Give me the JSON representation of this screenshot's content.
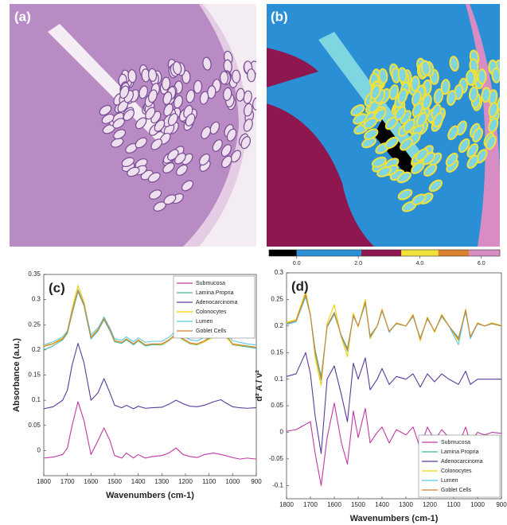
{
  "images": [
    {
      "label": "(a)"
    },
    {
      "label": "(b)"
    }
  ],
  "colorbar": {
    "lim": [
      -0.9,
      6.6
    ],
    "bounds": [
      -0.9,
      0,
      2.1,
      3.4,
      4.6,
      5.6,
      6.6
    ],
    "colors": [
      "#000000",
      "#2b8fd6",
      "#8e1750",
      "#f2e03a",
      "#d9812f",
      "#d88cc4"
    ],
    "ticks": [
      {
        "value": 0,
        "label": "0.0"
      },
      {
        "value": 2,
        "label": "2.0"
      },
      {
        "value": 4,
        "label": "4.0"
      },
      {
        "value": 6,
        "label": "6.0"
      }
    ]
  },
  "chart_data": [
    {
      "type": "line",
      "panel_label": "(c)",
      "x_label": "Wavenumbers (cm-1)",
      "y_label": "Absorbance (a.u.)",
      "legend": "upper right",
      "x": [
        1800,
        1760,
        1720,
        1700,
        1680,
        1655,
        1630,
        1600,
        1570,
        1545,
        1520,
        1500,
        1470,
        1450,
        1420,
        1400,
        1370,
        1340,
        1300,
        1270,
        1240,
        1210,
        1180,
        1150,
        1120,
        1080,
        1050,
        1030,
        1000,
        970,
        940,
        900
      ],
      "xlim": [
        1800,
        900
      ],
      "xticks": [
        1800,
        1700,
        1600,
        1500,
        1400,
        1300,
        1200,
        1100,
        1000,
        900
      ],
      "ylim": [
        -0.05,
        0.35
      ],
      "yticks": [
        0,
        0.05,
        0.1,
        0.15,
        0.2,
        0.25,
        0.3,
        0.35
      ],
      "series": [
        {
          "name": "Submucosa",
          "color": "#c0399f",
          "values": [
            -0.015,
            -0.013,
            -0.008,
            0.005,
            0.05,
            0.097,
            0.06,
            -0.008,
            0.02,
            0.045,
            0.02,
            -0.01,
            -0.015,
            -0.005,
            -0.015,
            -0.008,
            -0.015,
            -0.012,
            -0.01,
            -0.005,
            0.005,
            -0.008,
            -0.012,
            -0.014,
            -0.008,
            -0.005,
            -0.008,
            -0.01,
            -0.014,
            -0.017,
            -0.015,
            -0.017
          ]
        },
        {
          "name": "Lamina Propria",
          "color": "#3fb8a8",
          "values": [
            0.2,
            0.208,
            0.22,
            0.233,
            0.272,
            0.316,
            0.288,
            0.222,
            0.238,
            0.26,
            0.238,
            0.216,
            0.213,
            0.22,
            0.21,
            0.218,
            0.208,
            0.21,
            0.21,
            0.218,
            0.23,
            0.22,
            0.212,
            0.21,
            0.216,
            0.23,
            0.235,
            0.23,
            0.21,
            0.208,
            0.206,
            0.203
          ]
        },
        {
          "name": "Adenocarcinoma",
          "color": "#5a3a9a",
          "values": [
            0.083,
            0.087,
            0.1,
            0.12,
            0.17,
            0.213,
            0.175,
            0.1,
            0.115,
            0.143,
            0.115,
            0.09,
            0.085,
            0.09,
            0.083,
            0.088,
            0.084,
            0.085,
            0.086,
            0.092,
            0.1,
            0.093,
            0.088,
            0.087,
            0.09,
            0.097,
            0.101,
            0.095,
            0.087,
            0.085,
            0.084,
            0.085
          ]
        },
        {
          "name": "Colonocytes",
          "color": "#f0d000",
          "values": [
            0.208,
            0.213,
            0.224,
            0.238,
            0.282,
            0.328,
            0.296,
            0.226,
            0.241,
            0.266,
            0.242,
            0.219,
            0.215,
            0.222,
            0.212,
            0.219,
            0.21,
            0.212,
            0.211,
            0.219,
            0.23,
            0.221,
            0.213,
            0.211,
            0.216,
            0.226,
            0.228,
            0.226,
            0.211,
            0.209,
            0.208,
            0.205
          ]
        },
        {
          "name": "Lumen",
          "color": "#5bc8e8",
          "values": [
            0.21,
            0.216,
            0.226,
            0.238,
            0.277,
            0.32,
            0.292,
            0.23,
            0.244,
            0.265,
            0.244,
            0.222,
            0.219,
            0.226,
            0.216,
            0.224,
            0.215,
            0.217,
            0.217,
            0.225,
            0.238,
            0.228,
            0.22,
            0.218,
            0.225,
            0.24,
            0.245,
            0.24,
            0.218,
            0.215,
            0.212,
            0.21
          ]
        },
        {
          "name": "Goblet Cells",
          "color": "#d9812f",
          "values": [
            0.207,
            0.212,
            0.222,
            0.235,
            0.275,
            0.318,
            0.29,
            0.225,
            0.24,
            0.262,
            0.24,
            0.218,
            0.215,
            0.222,
            0.212,
            0.22,
            0.21,
            0.212,
            0.212,
            0.22,
            0.232,
            0.222,
            0.214,
            0.212,
            0.218,
            0.232,
            0.238,
            0.232,
            0.212,
            0.21,
            0.208,
            0.205
          ]
        }
      ]
    },
    {
      "type": "line",
      "panel_label": "(d)",
      "x_label": "Wavenumbers (cm-1)",
      "y_label": "d² A / ν²",
      "legend": "lower right",
      "x": [
        1800,
        1760,
        1720,
        1700,
        1680,
        1655,
        1630,
        1600,
        1570,
        1545,
        1520,
        1500,
        1470,
        1450,
        1420,
        1400,
        1370,
        1340,
        1300,
        1270,
        1240,
        1210,
        1180,
        1150,
        1120,
        1080,
        1050,
        1030,
        1000,
        970,
        940,
        900
      ],
      "xlim": [
        1800,
        900
      ],
      "xticks": [
        1800,
        1700,
        1600,
        1500,
        1400,
        1300,
        1200,
        1100,
        1000,
        900
      ],
      "ylim": [
        -0.125,
        0.3
      ],
      "yticks": [
        -0.1,
        -0.05,
        0,
        0.05,
        0.1,
        0.15,
        0.2,
        0.25,
        0.3
      ],
      "series": [
        {
          "name": "Submucosa",
          "color": "#c0399f",
          "values": [
            0.002,
            0.005,
            0.015,
            0.02,
            -0.04,
            -0.1,
            -0.01,
            0.055,
            -0.02,
            -0.06,
            0.04,
            -0.01,
            0.045,
            -0.02,
            0,
            0.01,
            -0.02,
            0.005,
            -0.005,
            0.01,
            -0.03,
            0.01,
            -0.015,
            0.005,
            -0.01,
            -0.025,
            0.01,
            -0.02,
            0,
            -0.005,
            0,
            -0.002
          ]
        },
        {
          "name": "Lamina Propria",
          "color": "#3fb8a8",
          "values": [
            0.203,
            0.208,
            0.255,
            0.22,
            0.155,
            0.105,
            0.198,
            0.222,
            0.182,
            0.158,
            0.218,
            0.2,
            0.242,
            0.182,
            0.2,
            0.228,
            0.19,
            0.204,
            0.2,
            0.218,
            0.178,
            0.213,
            0.19,
            0.218,
            0.2,
            0.178,
            0.226,
            0.18,
            0.204,
            0.2,
            0.204,
            0.2
          ]
        },
        {
          "name": "Adenocarcinoma",
          "color": "#5a3a9a",
          "values": [
            0.105,
            0.11,
            0.15,
            0.11,
            0.03,
            -0.04,
            0.1,
            0.125,
            0.07,
            0.02,
            0.13,
            0.1,
            0.14,
            0.08,
            0.1,
            0.12,
            0.09,
            0.105,
            0.1,
            0.11,
            0.085,
            0.11,
            0.095,
            0.11,
            0.1,
            0.09,
            0.115,
            0.09,
            0.1,
            0.1,
            0.1,
            0.1
          ]
        },
        {
          "name": "Colonocytes",
          "color": "#f0d000",
          "values": [
            0.207,
            0.212,
            0.265,
            0.222,
            0.14,
            0.088,
            0.205,
            0.24,
            0.178,
            0.142,
            0.224,
            0.198,
            0.25,
            0.176,
            0.2,
            0.232,
            0.188,
            0.206,
            0.2,
            0.222,
            0.172,
            0.217,
            0.188,
            0.222,
            0.2,
            0.172,
            0.232,
            0.178,
            0.206,
            0.2,
            0.206,
            0.201
          ]
        },
        {
          "name": "Lumen",
          "color": "#5bc8e8",
          "values": [
            0.204,
            0.209,
            0.258,
            0.219,
            0.148,
            0.098,
            0.2,
            0.226,
            0.18,
            0.152,
            0.22,
            0.2,
            0.245,
            0.178,
            0.2,
            0.23,
            0.188,
            0.205,
            0.2,
            0.22,
            0.176,
            0.214,
            0.19,
            0.22,
            0.2,
            0.165,
            0.23,
            0.176,
            0.205,
            0.2,
            0.205,
            0.2
          ]
        },
        {
          "name": "Goblet Cells",
          "color": "#d9812f",
          "values": [
            0.205,
            0.21,
            0.26,
            0.22,
            0.15,
            0.1,
            0.2,
            0.225,
            0.18,
            0.155,
            0.22,
            0.2,
            0.245,
            0.18,
            0.2,
            0.23,
            0.19,
            0.205,
            0.2,
            0.22,
            0.175,
            0.215,
            0.19,
            0.22,
            0.2,
            0.175,
            0.23,
            0.18,
            0.205,
            0.2,
            0.205,
            0.2
          ]
        }
      ]
    }
  ]
}
